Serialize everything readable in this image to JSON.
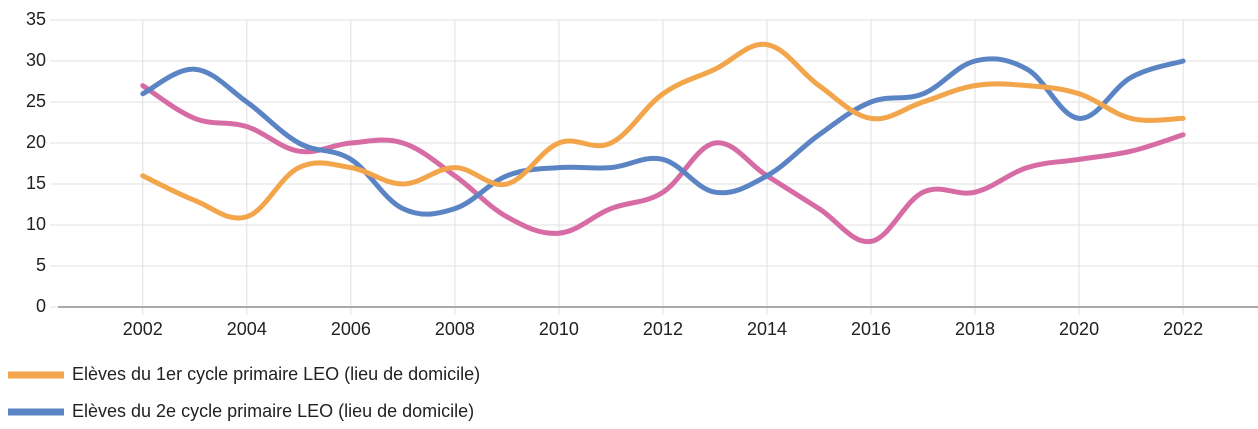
{
  "chart_data": {
    "type": "line",
    "x": [
      2002,
      2003,
      2004,
      2005,
      2006,
      2007,
      2008,
      2009,
      2010,
      2011,
      2012,
      2013,
      2014,
      2015,
      2016,
      2017,
      2018,
      2019,
      2020,
      2021,
      2022
    ],
    "series": [
      {
        "name": "Elèves du 1er cycle primaire LEO (lieu de domicile)",
        "color": "#f2a54a",
        "values": [
          16,
          13,
          11,
          17,
          17,
          15,
          17,
          15,
          20,
          20,
          26,
          29,
          32,
          27,
          23,
          25,
          27,
          27,
          26,
          23,
          23
        ]
      },
      {
        "name": "Elèves du 2e cycle primaire LEO (lieu de domicile)",
        "color": "#5b84c4",
        "values": [
          26,
          29,
          25,
          20,
          18,
          12,
          12,
          16,
          17,
          17,
          18,
          14,
          16,
          21,
          25,
          26,
          30,
          29,
          23,
          28,
          30
        ]
      },
      {
        "color": "#d76ba4",
        "values": [
          27,
          23,
          22,
          19,
          20,
          20,
          16,
          11,
          9,
          12,
          14,
          20,
          16,
          12,
          8,
          14,
          14,
          17,
          18,
          19,
          21
        ]
      }
    ],
    "xlim": [
      2000.37,
      2023.44
    ],
    "xticks": [
      2002,
      2004,
      2006,
      2008,
      2010,
      2012,
      2014,
      2016,
      2018,
      2020,
      2022
    ],
    "ylim": [
      0,
      35
    ],
    "yticks": [
      0,
      5,
      10,
      15,
      20,
      25,
      30,
      35
    ],
    "grid": true
  }
}
